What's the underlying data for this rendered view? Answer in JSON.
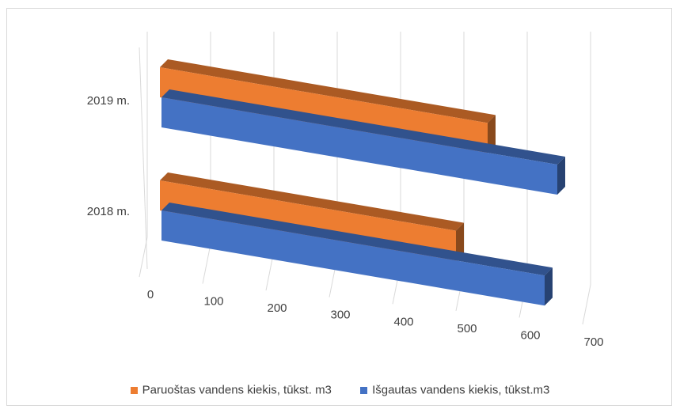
{
  "chart_data": {
    "type": "bar",
    "orientation": "horizontal",
    "style": "3d-clustered",
    "title": "",
    "categories": [
      "2018 m.",
      "2019 m."
    ],
    "series": [
      {
        "name": "Paruoštas vandens kiekis, tūkst. m3",
        "color": "#ed7d31",
        "values": [
          470,
          520
        ]
      },
      {
        "name": "Išgautas vandens kiekis, tūkst.m3",
        "color": "#4472c4",
        "values": [
          610,
          630
        ]
      }
    ],
    "x_ticks": [
      "0",
      "100",
      "200",
      "300",
      "400",
      "500",
      "600",
      "700"
    ],
    "xlim": [
      0,
      700
    ],
    "grid": true,
    "legend_position": "bottom"
  }
}
